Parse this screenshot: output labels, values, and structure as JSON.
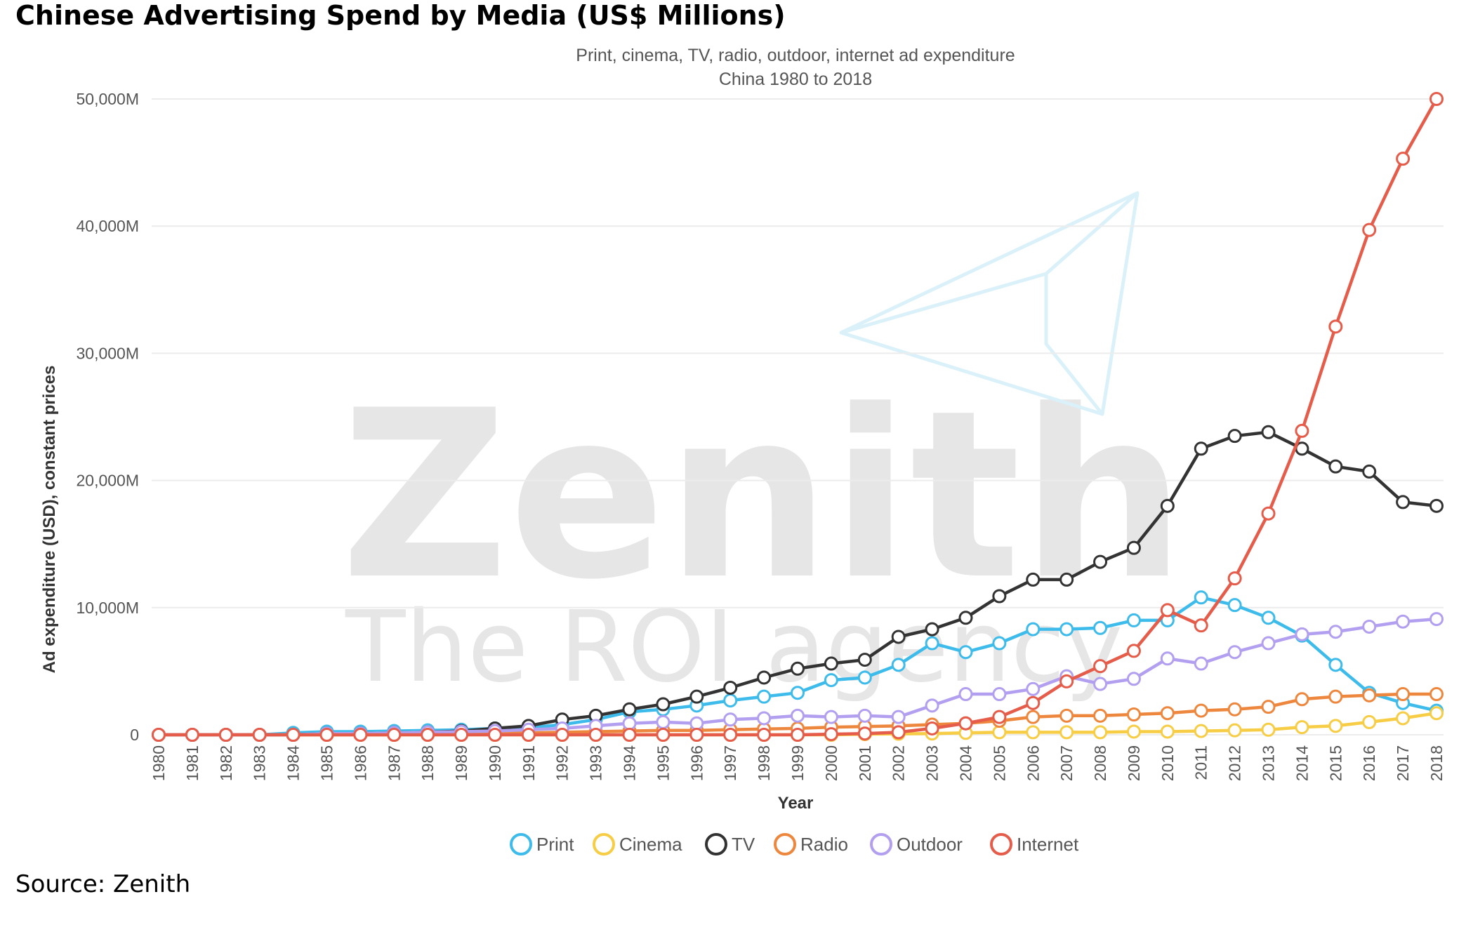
{
  "title": "Chinese Advertising Spend by Media (US$ Millions)",
  "source": "Source: Zenith",
  "watermark": {
    "brand": "Zenith",
    "tagline": "The ROI agency"
  },
  "chart_data": {
    "type": "line",
    "subtitle": [
      "Print, cinema, TV, radio, outdoor, internet ad expenditure",
      "China 1980 to 2018"
    ],
    "xlabel": "Year",
    "ylabel": "Ad expenditure (USD), constant prices",
    "ylim": [
      0,
      50000
    ],
    "yticks": [
      0,
      10000,
      20000,
      30000,
      40000,
      50000
    ],
    "ytick_labels": [
      "0",
      "10,000M",
      "20,000M",
      "30,000M",
      "40,000M",
      "50,000M"
    ],
    "grid": true,
    "legend_position": "bottom",
    "x": [
      1980,
      1981,
      1982,
      1983,
      1984,
      1985,
      1986,
      1987,
      1988,
      1989,
      1990,
      1991,
      1992,
      1993,
      1994,
      1995,
      1996,
      1997,
      1998,
      1999,
      2000,
      2001,
      2002,
      2003,
      2004,
      2005,
      2006,
      2007,
      2008,
      2009,
      2010,
      2011,
      2012,
      2013,
      2014,
      2015,
      2016,
      2017,
      2018
    ],
    "series": [
      {
        "name": "Print",
        "color": "#3dbbea",
        "values": [
          0,
          0,
          0,
          0,
          150,
          250,
          250,
          300,
          350,
          400,
          500,
          550,
          800,
          1200,
          1800,
          2000,
          2300,
          2700,
          3000,
          3300,
          4300,
          4500,
          5500,
          7200,
          6500,
          7200,
          8300,
          8300,
          8400,
          9000,
          9000,
          10800,
          10200,
          9200,
          7800,
          5500,
          3300,
          2500,
          1900
        ]
      },
      {
        "name": "Cinema",
        "color": "#f6cd45",
        "values": [
          0,
          0,
          0,
          0,
          0,
          0,
          0,
          0,
          0,
          0,
          0,
          0,
          0,
          0,
          0,
          0,
          0,
          0,
          0,
          0,
          0,
          50,
          80,
          100,
          150,
          200,
          200,
          200,
          200,
          250,
          250,
          300,
          350,
          400,
          600,
          700,
          1000,
          1300,
          1700
        ]
      },
      {
        "name": "TV",
        "color": "#333333",
        "values": [
          0,
          0,
          0,
          0,
          0,
          100,
          100,
          150,
          200,
          300,
          500,
          700,
          1200,
          1500,
          2000,
          2400,
          3000,
          3700,
          4500,
          5200,
          5600,
          5900,
          7700,
          8300,
          9200,
          10900,
          12200,
          12200,
          13600,
          14700,
          18000,
          22500,
          23500,
          23800,
          22500,
          21100,
          20700,
          18300,
          18000
        ]
      },
      {
        "name": "Radio",
        "color": "#ee873e",
        "values": [
          0,
          0,
          0,
          0,
          0,
          0,
          0,
          0,
          50,
          50,
          100,
          150,
          200,
          250,
          300,
          350,
          350,
          400,
          450,
          500,
          600,
          650,
          700,
          800,
          900,
          1100,
          1400,
          1500,
          1500,
          1600,
          1700,
          1900,
          2000,
          2200,
          2800,
          3000,
          3100,
          3200,
          3200
        ]
      },
      {
        "name": "Outdoor",
        "color": "#b39ff0",
        "values": [
          0,
          0,
          0,
          0,
          0,
          100,
          100,
          150,
          200,
          250,
          300,
          400,
          500,
          700,
          900,
          1000,
          900,
          1200,
          1300,
          1500,
          1400,
          1500,
          1400,
          2300,
          3200,
          3200,
          3600,
          4600,
          4000,
          4400,
          6000,
          5600,
          6500,
          7200,
          7900,
          8100,
          8500,
          8900,
          9100
        ]
      },
      {
        "name": "Internet",
        "color": "#e55c4a",
        "values": [
          0,
          0,
          0,
          0,
          0,
          0,
          0,
          0,
          0,
          0,
          0,
          0,
          0,
          0,
          0,
          0,
          0,
          0,
          0,
          0,
          50,
          100,
          200,
          500,
          900,
          1400,
          2500,
          4200,
          5400,
          6600,
          9800,
          8600,
          12300,
          17400,
          23900,
          32100,
          39700,
          45300,
          50000
        ]
      }
    ]
  }
}
